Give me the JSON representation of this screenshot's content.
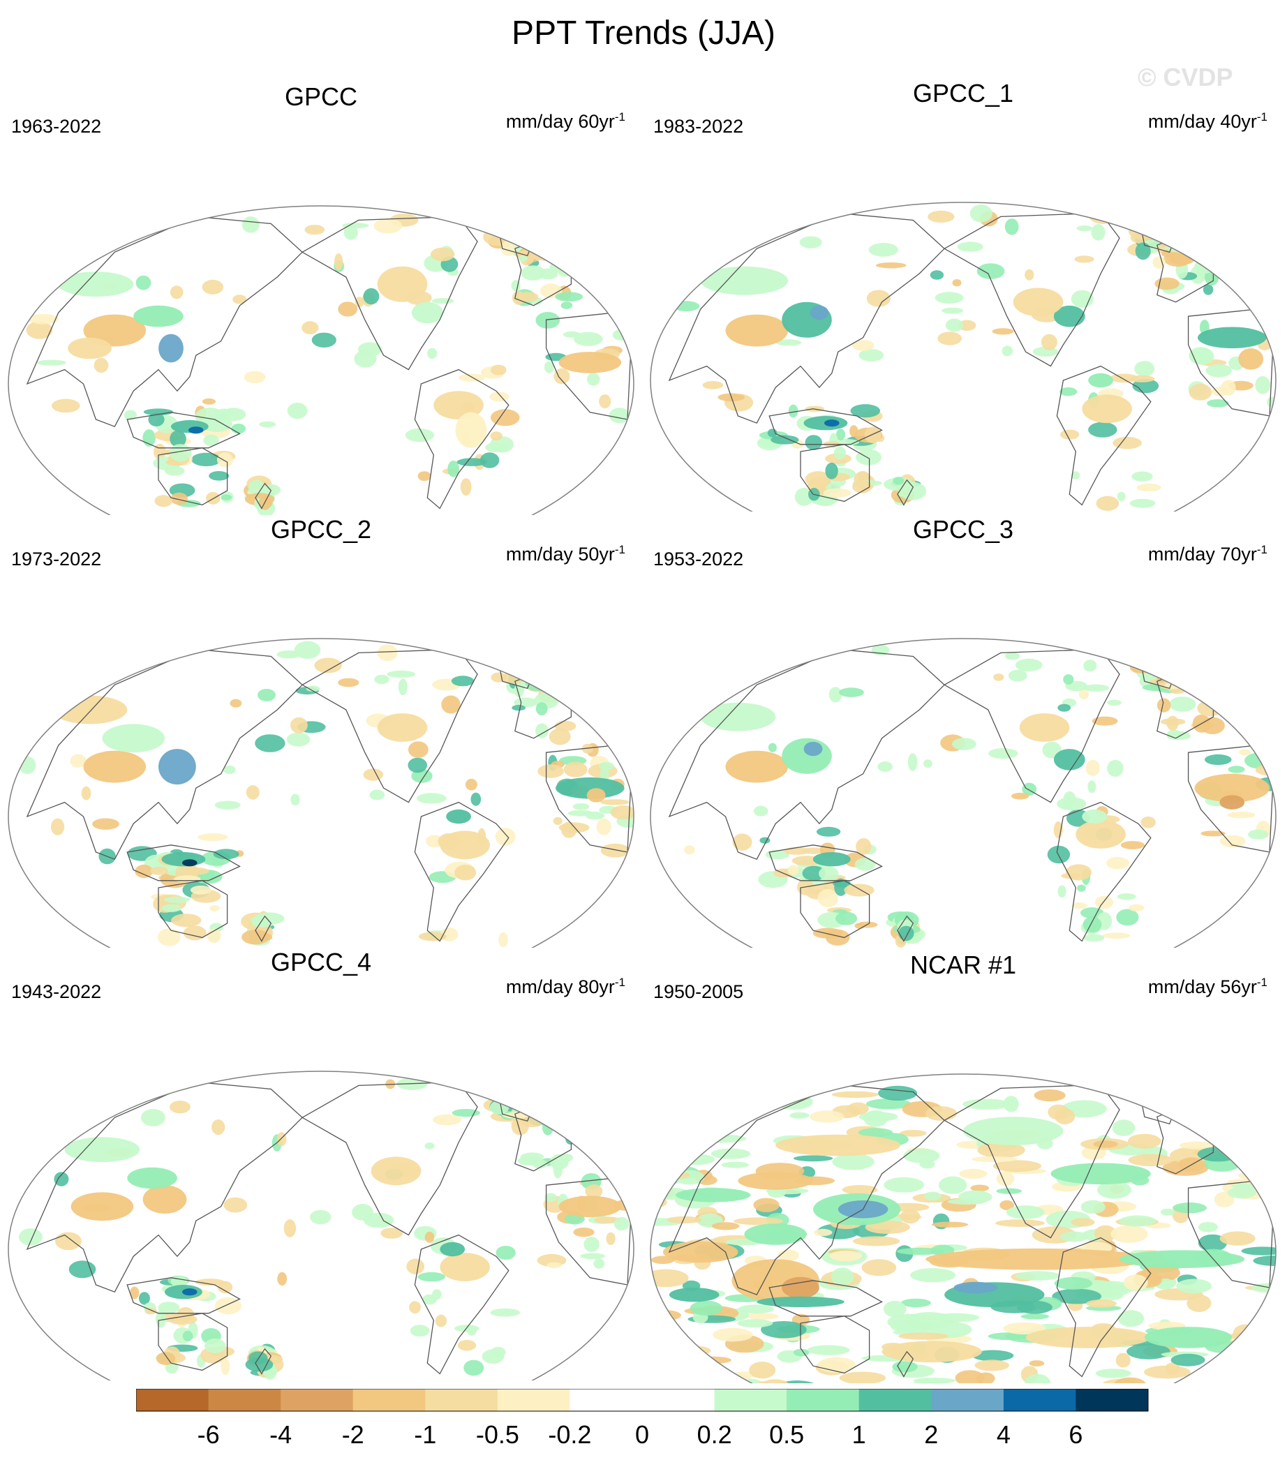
{
  "figure": {
    "title": "PPT Trends (JJA)",
    "watermark": "© CVDP"
  },
  "colors": {
    "land_coast": "#555555",
    "map_border": "#808080"
  },
  "panels": [
    {
      "id": "gpcc",
      "title": "GPCC",
      "period": "1963-2022",
      "units": "mm/day 60yr",
      "units_sup": "-1",
      "coverage": "land"
    },
    {
      "id": "gpcc_1",
      "title": "GPCC_1",
      "period": "1983-2022",
      "units": "mm/day 40yr",
      "units_sup": "-1",
      "coverage": "land"
    },
    {
      "id": "gpcc_2",
      "title": "GPCC_2",
      "period": "1973-2022",
      "units": "mm/day 50yr",
      "units_sup": "-1",
      "coverage": "land"
    },
    {
      "id": "gpcc_3",
      "title": "GPCC_3",
      "period": "1953-2022",
      "units": "mm/day 70yr",
      "units_sup": "-1",
      "coverage": "land"
    },
    {
      "id": "gpcc_4",
      "title": "GPCC_4",
      "period": "1943-2022",
      "units": "mm/day 80yr",
      "units_sup": "-1",
      "coverage": "land"
    },
    {
      "id": "ncar1",
      "title": "NCAR #1",
      "period": "1950-2005",
      "units": "mm/day 56yr",
      "units_sup": "-1",
      "coverage": "global"
    }
  ],
  "colorbar": {
    "levels": [
      "-6",
      "-4",
      "-2",
      "-1",
      "-0.5",
      "-0.2",
      "0",
      "0.2",
      "0.5",
      "1",
      "2",
      "4",
      "6"
    ],
    "colors": [
      "#b5682a",
      "#cc8744",
      "#dea362",
      "#f2c77f",
      "#f5dca0",
      "#fdf1c3",
      "#ffffff",
      "#ffffff",
      "#c6f9cb",
      "#94edb4",
      "#52bfa0",
      "#6aa6c8",
      "#0b69a8",
      "#003659"
    ]
  }
}
